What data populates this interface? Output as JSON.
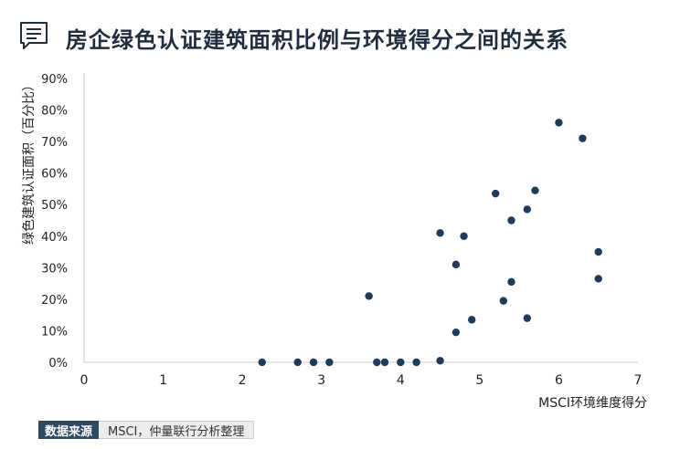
{
  "header": {
    "title": "房企绿色认证建筑面积比例与环境得分之间的关系",
    "icon": "message-lines-icon"
  },
  "source": {
    "label": "数据来源",
    "text": "MSCI，仲量联行分析整理"
  },
  "colors": {
    "point": "#1f3b57",
    "axis": "#cccccc",
    "title": "#1f2d3d",
    "source_label_bg": "#2e4a63"
  },
  "chart_data": {
    "type": "scatter",
    "title": "房企绿色认证建筑面积比例与环境得分之间的关系",
    "xlabel": "MSCI环境维度得分",
    "ylabel": "绿色建筑认证面积（百分比）",
    "xlim": [
      0,
      7
    ],
    "ylim": [
      0,
      90
    ],
    "x_ticks": [
      "0",
      "1",
      "2",
      "3",
      "4",
      "5",
      "6",
      "7"
    ],
    "y_ticks": [
      "0%",
      "10%",
      "20%",
      "30%",
      "40%",
      "50%",
      "60%",
      "70%",
      "80%",
      "90%"
    ],
    "grid": false,
    "points": [
      {
        "x": 2.25,
        "y": 0
      },
      {
        "x": 2.7,
        "y": 0
      },
      {
        "x": 2.9,
        "y": 0
      },
      {
        "x": 3.1,
        "y": 0
      },
      {
        "x": 3.7,
        "y": 0
      },
      {
        "x": 3.8,
        "y": 0
      },
      {
        "x": 4.0,
        "y": 0
      },
      {
        "x": 4.2,
        "y": 0
      },
      {
        "x": 4.5,
        "y": 0.5
      },
      {
        "x": 3.6,
        "y": 21
      },
      {
        "x": 4.5,
        "y": 41
      },
      {
        "x": 4.7,
        "y": 31
      },
      {
        "x": 4.8,
        "y": 40
      },
      {
        "x": 4.7,
        "y": 9.5
      },
      {
        "x": 4.9,
        "y": 13.5
      },
      {
        "x": 5.2,
        "y": 53.5
      },
      {
        "x": 5.3,
        "y": 19.5
      },
      {
        "x": 5.4,
        "y": 45
      },
      {
        "x": 5.4,
        "y": 25.5
      },
      {
        "x": 5.6,
        "y": 48.5
      },
      {
        "x": 5.6,
        "y": 14
      },
      {
        "x": 5.7,
        "y": 54.5
      },
      {
        "x": 6.0,
        "y": 76
      },
      {
        "x": 6.3,
        "y": 71
      },
      {
        "x": 6.5,
        "y": 35
      },
      {
        "x": 6.5,
        "y": 26.5
      }
    ]
  }
}
